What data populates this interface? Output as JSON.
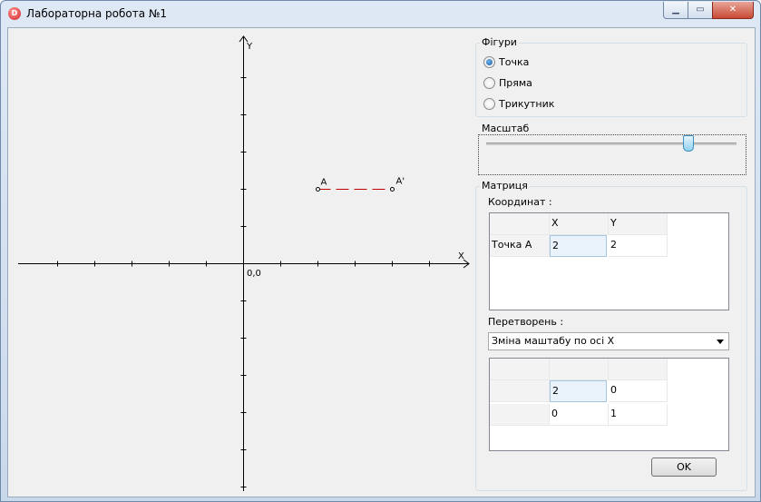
{
  "window": {
    "title": "Лабораторна робота №1",
    "icon": "app-logo-icon",
    "controls": {
      "minimize": "minimize-icon",
      "maximize": "maximize-icon",
      "close": "close-icon"
    }
  },
  "plot": {
    "x_axis_label": "X",
    "y_axis_label": "Y",
    "origin_label": "0,0",
    "point_a_label": "A",
    "point_a_prime_label": "A'",
    "point_a": [
      2,
      2
    ],
    "point_a_prime": [
      4,
      2
    ],
    "segment_color": "#c00000"
  },
  "figures": {
    "title": "Фігури",
    "options": [
      "Точка",
      "Пряма",
      "Трикутник"
    ],
    "selected": "Точка"
  },
  "scale": {
    "title": "Масштаб"
  },
  "matrix": {
    "title": "Матриця",
    "coords_label": "Координат :",
    "coords_columns": [
      "X",
      "Y"
    ],
    "coords_row_header": "Точка А",
    "coords_values": [
      "2",
      "2"
    ],
    "transform_label": "Перетворень :",
    "transform_selected": "Зміна маштабу по осі Х",
    "transform_rows": [
      [
        "2",
        "0"
      ],
      [
        "0",
        "1"
      ]
    ]
  },
  "ok_button": "OK",
  "colors": {
    "accent": "#1c5fa8",
    "window_bg": "#f0f0f0",
    "axis": "#000000"
  }
}
